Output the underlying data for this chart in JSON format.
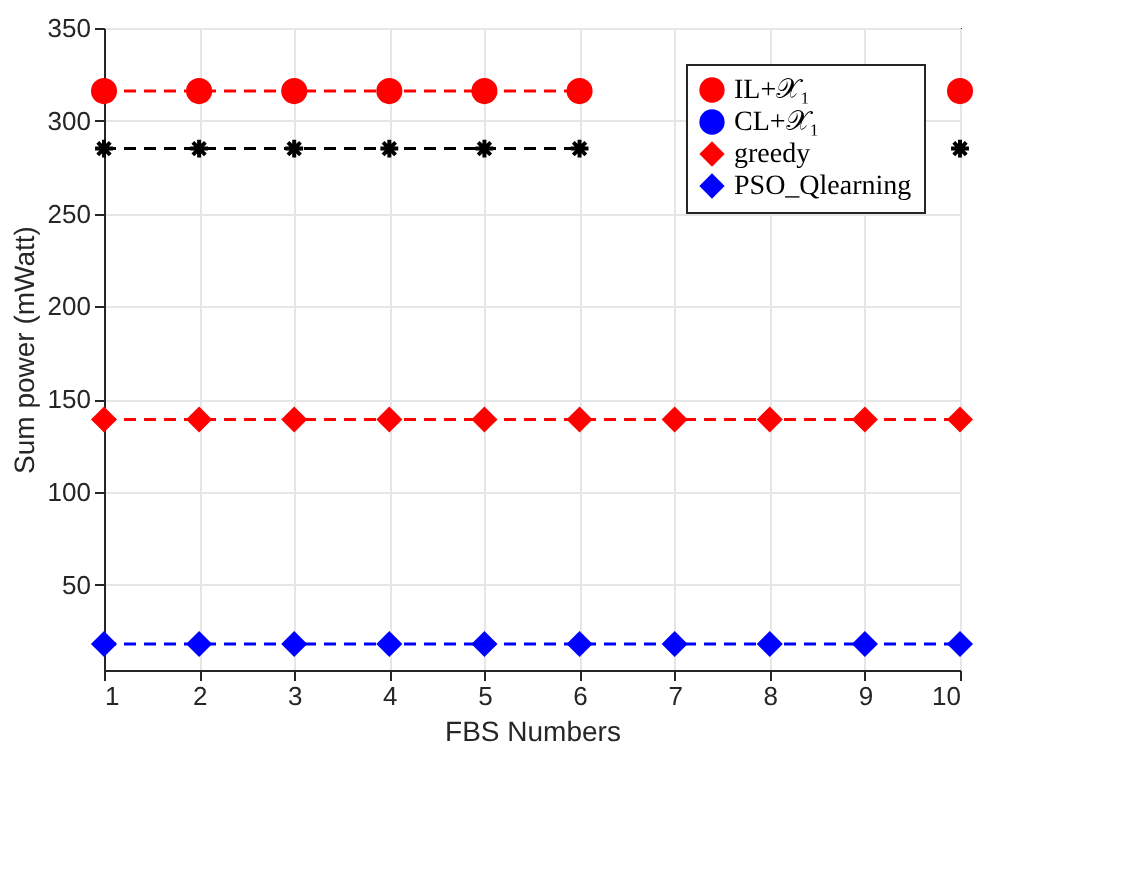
{
  "chart_data": {
    "type": "line",
    "xlabel": "FBS Numbers",
    "ylabel": "Sum power (mWatt)",
    "x": [
      1,
      2,
      3,
      4,
      5,
      6,
      7,
      8,
      9,
      10
    ],
    "series": [
      {
        "name": "IL+𝒳₁",
        "color": "#ff0000",
        "marker": "circle",
        "values": [
          316,
          316,
          316,
          316,
          316,
          316,
          null,
          null,
          null,
          316
        ]
      },
      {
        "name": "CL+𝒳₁",
        "color": "#0000ff",
        "marker": "circle",
        "values": [
          null,
          null,
          null,
          null,
          null,
          null,
          null,
          null,
          null,
          null
        ]
      },
      {
        "name": "greedy",
        "color": "#ff0000",
        "marker": "diamond",
        "values": [
          139,
          139,
          139,
          139,
          139,
          139,
          139,
          139,
          139,
          139
        ]
      },
      {
        "name": "PSO_Qlearning",
        "color": "#0000ff",
        "marker": "diamond",
        "values": [
          18,
          18,
          18,
          18,
          18,
          18,
          18,
          18,
          18,
          18
        ]
      },
      {
        "color": "#000000",
        "marker": "cross",
        "values": [
          285,
          285,
          285,
          285,
          285,
          285,
          null,
          null,
          null,
          285
        ]
      }
    ],
    "xlim": [
      1,
      10
    ],
    "xticks": [
      1,
      2,
      3,
      4,
      5,
      6,
      7,
      8,
      9,
      10
    ],
    "ylim": [
      4,
      350
    ],
    "yticks": [
      50,
      100,
      150,
      200,
      250,
      300,
      350
    ],
    "grid": true,
    "legend": "top right",
    "line_style": "dashed"
  }
}
